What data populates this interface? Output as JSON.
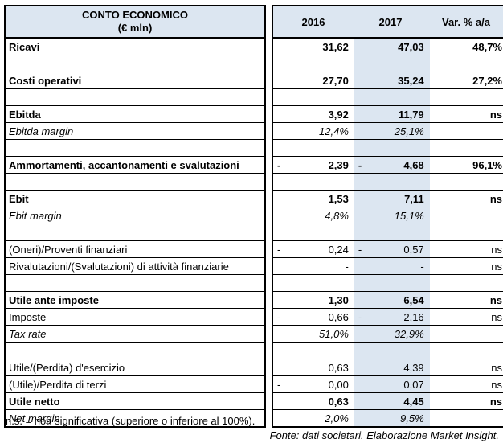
{
  "colors": {
    "header_fill": "#DCE6F1",
    "highlight_column_fill": "#DCE6F1",
    "border": "#000000"
  },
  "table": {
    "title_line1": "CONTO ECONOMICO",
    "title_line2": "(€ mln)",
    "columns": [
      "2016",
      "2017",
      "Var. % a/a"
    ],
    "rows": [
      {
        "label": "Ricavi",
        "style": "bold",
        "v2016": "31,62",
        "v2017": "47,03",
        "var": "48,7%"
      },
      {
        "spacer": true,
        "label": "",
        "v2016": "",
        "v2017": "",
        "var": ""
      },
      {
        "label": "Costi operativi",
        "style": "bold",
        "v2016": "27,70",
        "v2017": "35,24",
        "var": "27,2%"
      },
      {
        "spacer": true,
        "label": "",
        "v2016": "",
        "v2017": "",
        "var": ""
      },
      {
        "label": "Ebitda",
        "style": "bold",
        "v2016": "3,92",
        "v2017": "11,79",
        "var": "ns"
      },
      {
        "label": "Ebitda margin",
        "style": "italic",
        "v2016": "12,4%",
        "v2017": "25,1%",
        "var": ""
      },
      {
        "spacer": true,
        "label": "",
        "v2016": "",
        "v2017": "",
        "var": ""
      },
      {
        "label": "Ammortamenti, accantonamenti e svalutazioni",
        "style": "bold",
        "neg2016": true,
        "v2016": "2,39",
        "neg2017": true,
        "v2017": "4,68",
        "var": "96,1%"
      },
      {
        "spacer": true,
        "label": "",
        "v2016": "",
        "v2017": "",
        "var": ""
      },
      {
        "label": "Ebit",
        "style": "bold",
        "v2016": "1,53",
        "v2017": "7,11",
        "var": "ns"
      },
      {
        "label": "Ebit margin",
        "style": "italic",
        "v2016": "4,8%",
        "v2017": "15,1%",
        "var": ""
      },
      {
        "spacer": true,
        "label": "",
        "v2016": "",
        "v2017": "",
        "var": ""
      },
      {
        "label": "(Oneri)/Proventi finanziari",
        "style": "regular",
        "neg2016": true,
        "v2016": "0,24",
        "neg2017": true,
        "v2017": "0,57",
        "var": "ns"
      },
      {
        "label": "Rivalutazioni/(Svalutazioni) di attività finanziarie",
        "style": "regular",
        "v2016": "-",
        "v2017": "-",
        "var": "ns"
      },
      {
        "spacer": true,
        "label": "",
        "v2016": "",
        "v2017": "",
        "var": ""
      },
      {
        "label": "Utile ante imposte",
        "style": "bold",
        "v2016": "1,30",
        "v2017": "6,54",
        "var": "ns"
      },
      {
        "label": "Imposte",
        "style": "regular",
        "neg2016": true,
        "v2016": "0,66",
        "neg2017": true,
        "v2017": "2,16",
        "var": "ns"
      },
      {
        "label": "Tax rate",
        "style": "italic",
        "v2016": "51,0%",
        "v2017": "32,9%",
        "var": ""
      },
      {
        "spacer": true,
        "label": "",
        "v2016": "",
        "v2017": "",
        "var": ""
      },
      {
        "label": "Utile/(Perdita) d'esercizio",
        "style": "regular",
        "v2016": "0,63",
        "v2017": "4,39",
        "var": "ns"
      },
      {
        "label": "(Utile)/Perdita di terzi",
        "style": "regular",
        "neg2016": true,
        "v2016": "0,00",
        "v2017": "0,07",
        "var": "ns"
      },
      {
        "label": "Utile netto",
        "style": "bold",
        "v2016": "0,63",
        "v2017": "4,45",
        "var": "ns"
      },
      {
        "label": "Net margin",
        "style": "italic",
        "v2016": "2,0%",
        "v2017": "9,5%",
        "var": ""
      }
    ]
  },
  "footnotes": {
    "note": "n.s. = non significativa (superiore o inferiore al 100%).",
    "source": "Fonte: dati societari. Elaborazione Market Insight."
  }
}
